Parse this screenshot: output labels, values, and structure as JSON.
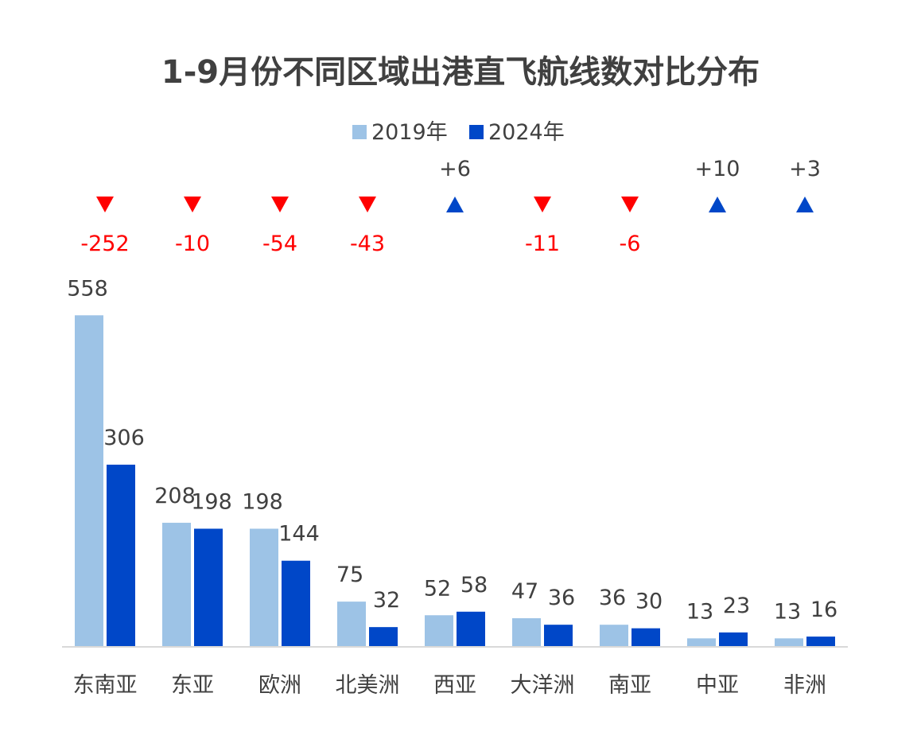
{
  "chart_data": {
    "type": "bar",
    "title": "1-9月份不同区域出港直飞航线数对比分布",
    "legend_position": "top",
    "grid": false,
    "ylim": [
      0,
      600
    ],
    "categories": [
      "东南亚",
      "东亚",
      "欧洲",
      "北美洲",
      "西亚",
      "大洋洲",
      "南亚",
      "中亚",
      "非洲"
    ],
    "series": [
      {
        "name": "2019年",
        "color": "#9dc3e6",
        "values": [
          558,
          208,
          198,
          75,
          52,
          47,
          36,
          13,
          13
        ]
      },
      {
        "name": "2024年",
        "color": "#0047c8",
        "values": [
          306,
          198,
          144,
          32,
          58,
          36,
          30,
          23,
          16
        ]
      }
    ],
    "changes": [
      {
        "label": "-252",
        "direction": "down"
      },
      {
        "label": "-10",
        "direction": "down"
      },
      {
        "label": "-54",
        "direction": "down"
      },
      {
        "label": "-43",
        "direction": "down"
      },
      {
        "label": "+6",
        "direction": "up"
      },
      {
        "label": "-11",
        "direction": "down"
      },
      {
        "label": "-6",
        "direction": "down"
      },
      {
        "label": "+10",
        "direction": "up"
      },
      {
        "label": "+3",
        "direction": "up"
      }
    ],
    "colors": {
      "down": "#ff0000",
      "up": "#0047c8",
      "axis": "#d9d9d9",
      "text": "#404040"
    }
  }
}
